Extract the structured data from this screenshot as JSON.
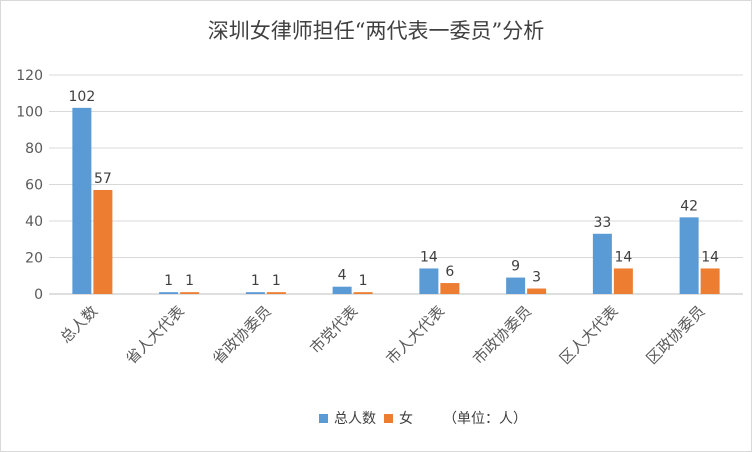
{
  "chart_data": {
    "type": "bar",
    "title": "深圳女律师担任“两代表一委员”分析",
    "categories": [
      "总人数",
      "省人大代表",
      "省政协委员",
      "市党代表",
      "市人大代表",
      "市政协委员",
      "区人大代表",
      "区政协委员"
    ],
    "series": [
      {
        "name": "总人数",
        "values": [
          102,
          1,
          1,
          4,
          14,
          9,
          33,
          42
        ],
        "color": "#5b9bd5"
      },
      {
        "name": "女",
        "values": [
          57,
          1,
          1,
          1,
          6,
          3,
          14,
          14
        ],
        "color": "#ed7d31"
      }
    ],
    "ylim": [
      0,
      120
    ],
    "yticks": [
      0,
      20,
      40,
      60,
      80,
      100,
      120
    ],
    "grid": true,
    "legend_position": "bottom",
    "unit_note": "（单位：人）"
  }
}
